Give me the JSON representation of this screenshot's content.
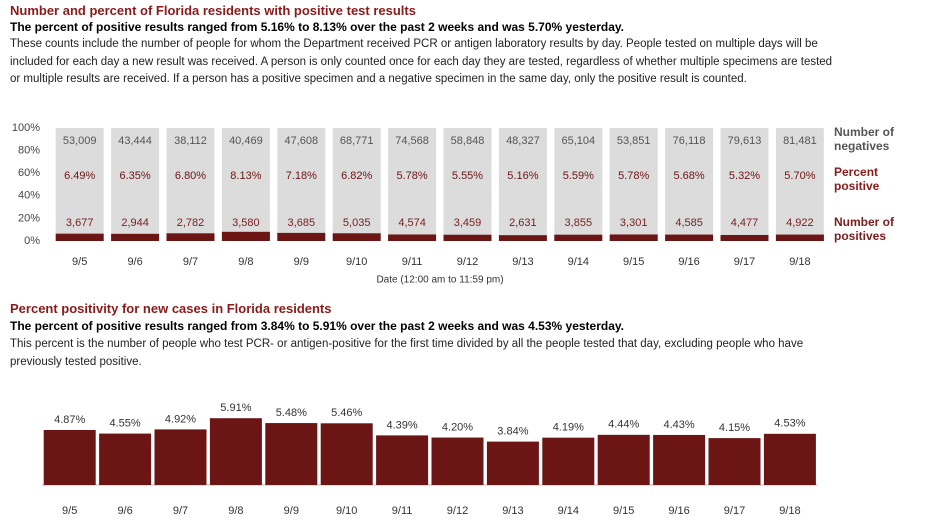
{
  "chart_data": [
    {
      "type": "percent_bar",
      "title": "Number and percent of Florida residents with positive test results",
      "subtitle": "The percent of positive results ranged from 5.16% to 8.13% over the past 2 weeks and was 5.70% yesterday.",
      "description": "These counts include the number of people for whom the Department received PCR or antigen laboratory results by day. People tested on multiple days will be included for each day a new result was received. A person is only counted once for each day they are tested, regardless of whether multiple specimens are tested or multiple results are received. If a person has a positive specimen and a negative specimen in the same day, only the positive result is counted.",
      "x_label": "Date (12:00 am to 11:59 pm)",
      "categories": [
        "9/5",
        "9/6",
        "9/7",
        "9/8",
        "9/9",
        "9/10",
        "9/11",
        "9/12",
        "9/13",
        "9/14",
        "9/15",
        "9/16",
        "9/17",
        "9/18"
      ],
      "series": [
        {
          "name": "Number of negatives",
          "color": "#555555",
          "values": [
            53009,
            43444,
            38112,
            40469,
            47608,
            68771,
            74568,
            58848,
            48327,
            65104,
            53851,
            76118,
            79613,
            81481
          ],
          "value_labels": [
            "53,009",
            "43,444",
            "38,112",
            "40,469",
            "47,608",
            "68,771",
            "74,568",
            "58,848",
            "48,327",
            "65,104",
            "53,851",
            "76,118",
            "79,613",
            "81,481"
          ]
        },
        {
          "name": "Percent positive",
          "color": "#6b1515",
          "values": [
            6.49,
            6.35,
            6.8,
            8.13,
            7.18,
            6.82,
            5.78,
            5.55,
            5.16,
            5.59,
            5.78,
            5.68,
            5.32,
            5.7
          ],
          "value_labels": [
            "6.49%",
            "6.35%",
            "6.80%",
            "8.13%",
            "7.18%",
            "6.82%",
            "5.78%",
            "5.55%",
            "5.16%",
            "5.59%",
            "5.78%",
            "5.68%",
            "5.32%",
            "5.70%"
          ]
        },
        {
          "name": "Number of positives",
          "color": "#7a2020",
          "values": [
            3677,
            2944,
            2782,
            3580,
            3685,
            5035,
            4574,
            3459,
            2631,
            3855,
            3301,
            4585,
            4477,
            4922
          ],
          "value_labels": [
            "3,677",
            "2,944",
            "2,782",
            "3,580",
            "3,685",
            "5,035",
            "4,574",
            "3,459",
            "2,631",
            "3,855",
            "3,301",
            "4,585",
            "4,477",
            "4,922"
          ]
        }
      ],
      "ylim": [
        0,
        100
      ],
      "yticks": [
        {
          "value": 0,
          "label": "0%"
        },
        {
          "value": 20,
          "label": "20%"
        },
        {
          "value": 40,
          "label": "40%"
        },
        {
          "value": 60,
          "label": "60%"
        },
        {
          "value": 80,
          "label": "80%"
        },
        {
          "value": 100,
          "label": "100%"
        }
      ]
    },
    {
      "type": "bar",
      "title": "Percent positivity for new cases in Florida residents",
      "subtitle": "The percent of positive results ranged from 3.84% to 5.91% over the past 2 weeks and was 4.53% yesterday.",
      "description": "This percent is the number of people who test PCR- or antigen-positive for the first time divided by all the people tested that day, excluding people who have previously tested positive.",
      "categories": [
        "9/5",
        "9/6",
        "9/7",
        "9/8",
        "9/9",
        "9/10",
        "9/11",
        "9/12",
        "9/13",
        "9/14",
        "9/15",
        "9/16",
        "9/17",
        "9/18"
      ],
      "color": "#6b1515",
      "values": [
        4.87,
        4.55,
        4.92,
        5.91,
        5.48,
        5.46,
        4.39,
        4.2,
        3.84,
        4.19,
        4.44,
        4.43,
        4.15,
        4.53
      ],
      "value_labels": [
        "4.87%",
        "4.55%",
        "4.92%",
        "5.91%",
        "5.48%",
        "5.46%",
        "4.39%",
        "4.20%",
        "3.84%",
        "4.19%",
        "4.44%",
        "4.43%",
        "4.15%",
        "4.53%"
      ]
    }
  ]
}
